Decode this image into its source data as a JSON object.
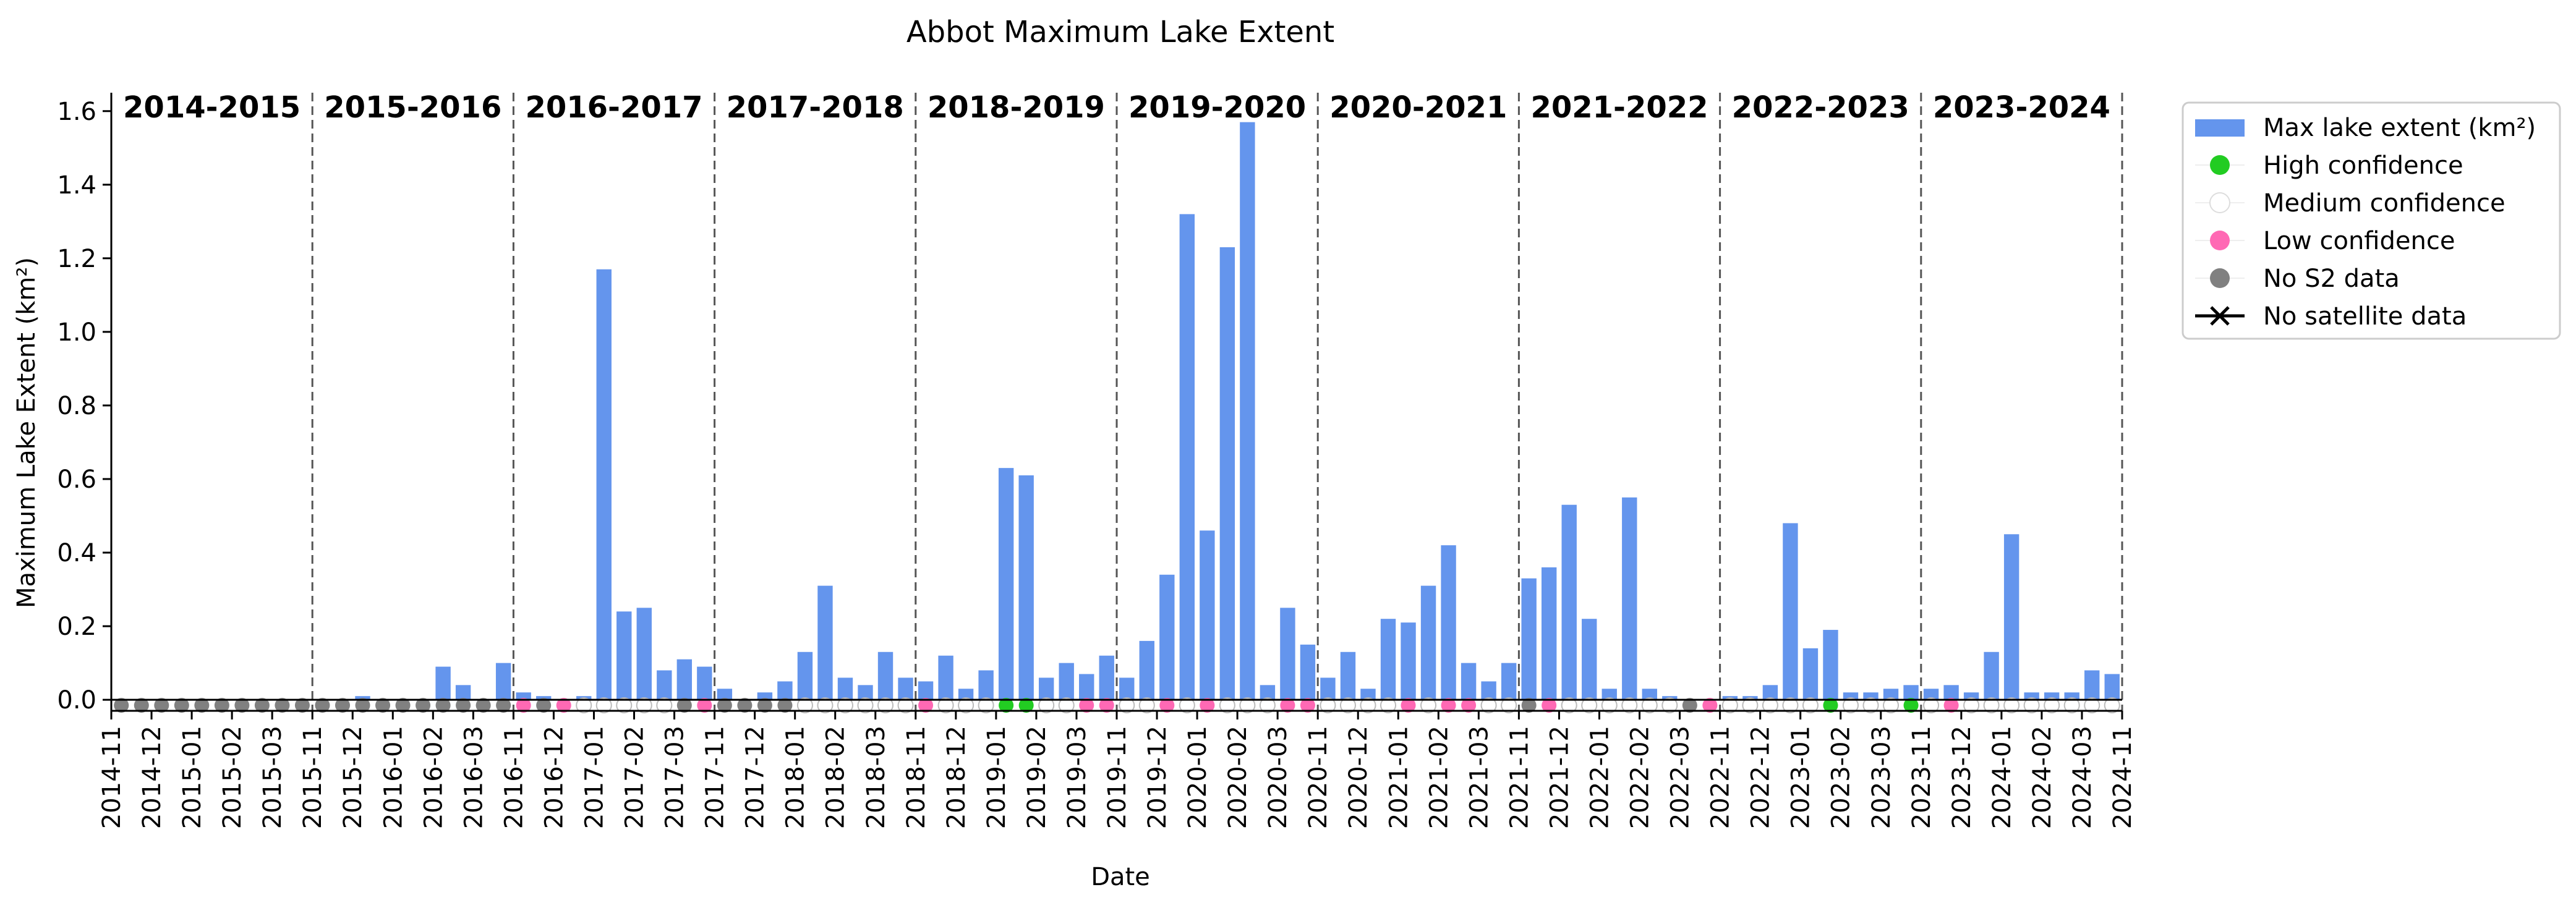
{
  "chart_data": {
    "type": "bar",
    "title": "Abbot Maximum Lake Extent",
    "xlabel": "Date",
    "ylabel": "Maximum Lake Extent (km²)",
    "ylim": [
      -0.03,
      1.65
    ],
    "yticks": [
      "0.0",
      "0.2",
      "0.4",
      "0.6",
      "0.8",
      "1.0",
      "1.2",
      "1.4",
      "1.6"
    ],
    "ytick_values": [
      0,
      0.2,
      0.4,
      0.6,
      0.8,
      1.0,
      1.2,
      1.4,
      1.6
    ],
    "xticks": [
      "2014-11",
      "2014-12",
      "2015-01",
      "2015-02",
      "2015-03",
      "2015-11",
      "2015-12",
      "2016-01",
      "2016-02",
      "2016-03",
      "2016-11",
      "2016-12",
      "2017-01",
      "2017-02",
      "2017-03",
      "2017-11",
      "2017-12",
      "2018-01",
      "2018-02",
      "2018-03",
      "2018-11",
      "2018-12",
      "2019-01",
      "2019-02",
      "2019-03",
      "2019-11",
      "2019-12",
      "2020-01",
      "2020-02",
      "2020-03",
      "2020-11",
      "2020-12",
      "2021-01",
      "2021-02",
      "2021-03",
      "2021-11",
      "2021-12",
      "2022-01",
      "2022-02",
      "2022-03",
      "2022-11",
      "2022-12",
      "2023-01",
      "2023-02",
      "2023-03",
      "2023-11",
      "2023-12",
      "2024-01",
      "2024-02",
      "2024-03",
      "2024-11"
    ],
    "xtick_positions": [
      0,
      2,
      4,
      6,
      8,
      10,
      12,
      14,
      16,
      18,
      20,
      22,
      24,
      26,
      28,
      30,
      32,
      34,
      36,
      38,
      40,
      42,
      44,
      46,
      48,
      50,
      52,
      54,
      56,
      58,
      60,
      62,
      64,
      66,
      68,
      70,
      72,
      74,
      76,
      78,
      80,
      82,
      84,
      86,
      88,
      90,
      92,
      94,
      96,
      98,
      100
    ],
    "seasons": [
      "2014-2015",
      "2015-2016",
      "2016-2017",
      "2017-2018",
      "2018-2019",
      "2019-2020",
      "2020-2021",
      "2021-2022",
      "2022-2023",
      "2023-2024"
    ],
    "season_boundaries": [
      10,
      20,
      30,
      40,
      50,
      60,
      70,
      80,
      90,
      100
    ],
    "values": [
      0,
      0,
      0,
      0,
      0,
      0,
      0,
      0,
      0,
      0,
      0,
      0,
      0.01,
      0,
      0,
      0,
      0.09,
      0.04,
      0,
      0.1,
      0.02,
      0.01,
      0,
      0.01,
      1.17,
      0.24,
      0.25,
      0.08,
      0.11,
      0.09,
      0.03,
      0,
      0.02,
      0.05,
      0.13,
      0.31,
      0.06,
      0.04,
      0.13,
      0.06,
      0.05,
      0.12,
      0.03,
      0.08,
      0.63,
      0.61,
      0.06,
      0.1,
      0.07,
      0.12,
      0.06,
      0.16,
      0.34,
      1.32,
      0.46,
      1.23,
      1.57,
      0.04,
      0.25,
      0.15,
      0.06,
      0.13,
      0.03,
      0.22,
      0.21,
      0.31,
      0.42,
      0.1,
      0.05,
      0.1,
      0.33,
      0.36,
      0.53,
      0.22,
      0.03,
      0.55,
      0.03,
      0.01,
      0,
      0,
      0.01,
      0.01,
      0.04,
      0.48,
      0.14,
      0.19,
      0.02,
      0.02,
      0.03,
      0.04,
      0.03,
      0.04,
      0.02,
      0.13,
      0.45,
      0.02,
      0.02,
      0.02,
      0.08,
      0.07
    ],
    "confidence": [
      "none",
      "none",
      "none",
      "none",
      "none",
      "none",
      "none",
      "none",
      "none",
      "none",
      "none",
      "none",
      "none",
      "none",
      "none",
      "none",
      "none",
      "none",
      "none",
      "none",
      "low",
      "none",
      "low",
      "medium",
      "medium",
      "medium",
      "medium",
      "medium",
      "none",
      "low",
      "none",
      "none",
      "none",
      "none",
      "medium",
      "medium",
      "medium",
      "medium",
      "medium",
      "medium",
      "low",
      "medium",
      "medium",
      "medium",
      "high",
      "high",
      "medium",
      "medium",
      "low",
      "low",
      "medium",
      "medium",
      "low",
      "medium",
      "low",
      "medium",
      "medium",
      "medium",
      "low",
      "low",
      "medium",
      "medium",
      "medium",
      "medium",
      "low",
      "medium",
      "low",
      "low",
      "medium",
      "medium",
      "none",
      "low",
      "medium",
      "medium",
      "medium",
      "medium",
      "medium",
      "medium",
      "none",
      "low",
      "medium",
      "medium",
      "medium",
      "medium",
      "medium",
      "high",
      "medium",
      "medium",
      "medium",
      "high",
      "medium",
      "low",
      "medium",
      "medium",
      "medium",
      "medium",
      "medium",
      "medium",
      "medium",
      "medium"
    ],
    "colors": {
      "bar": "#6495ED",
      "high": "#22CC22",
      "medium": "#FFFFFF",
      "low": "#FF69B4",
      "none": "#808080",
      "axis": "#000000",
      "divider": "#555555"
    },
    "legend": {
      "placement": "upper-right outside",
      "entries": [
        "Max lake extent (km²)",
        "High confidence",
        "Medium confidence",
        "Low confidence",
        "No S2 data",
        "No satellite data"
      ]
    }
  }
}
